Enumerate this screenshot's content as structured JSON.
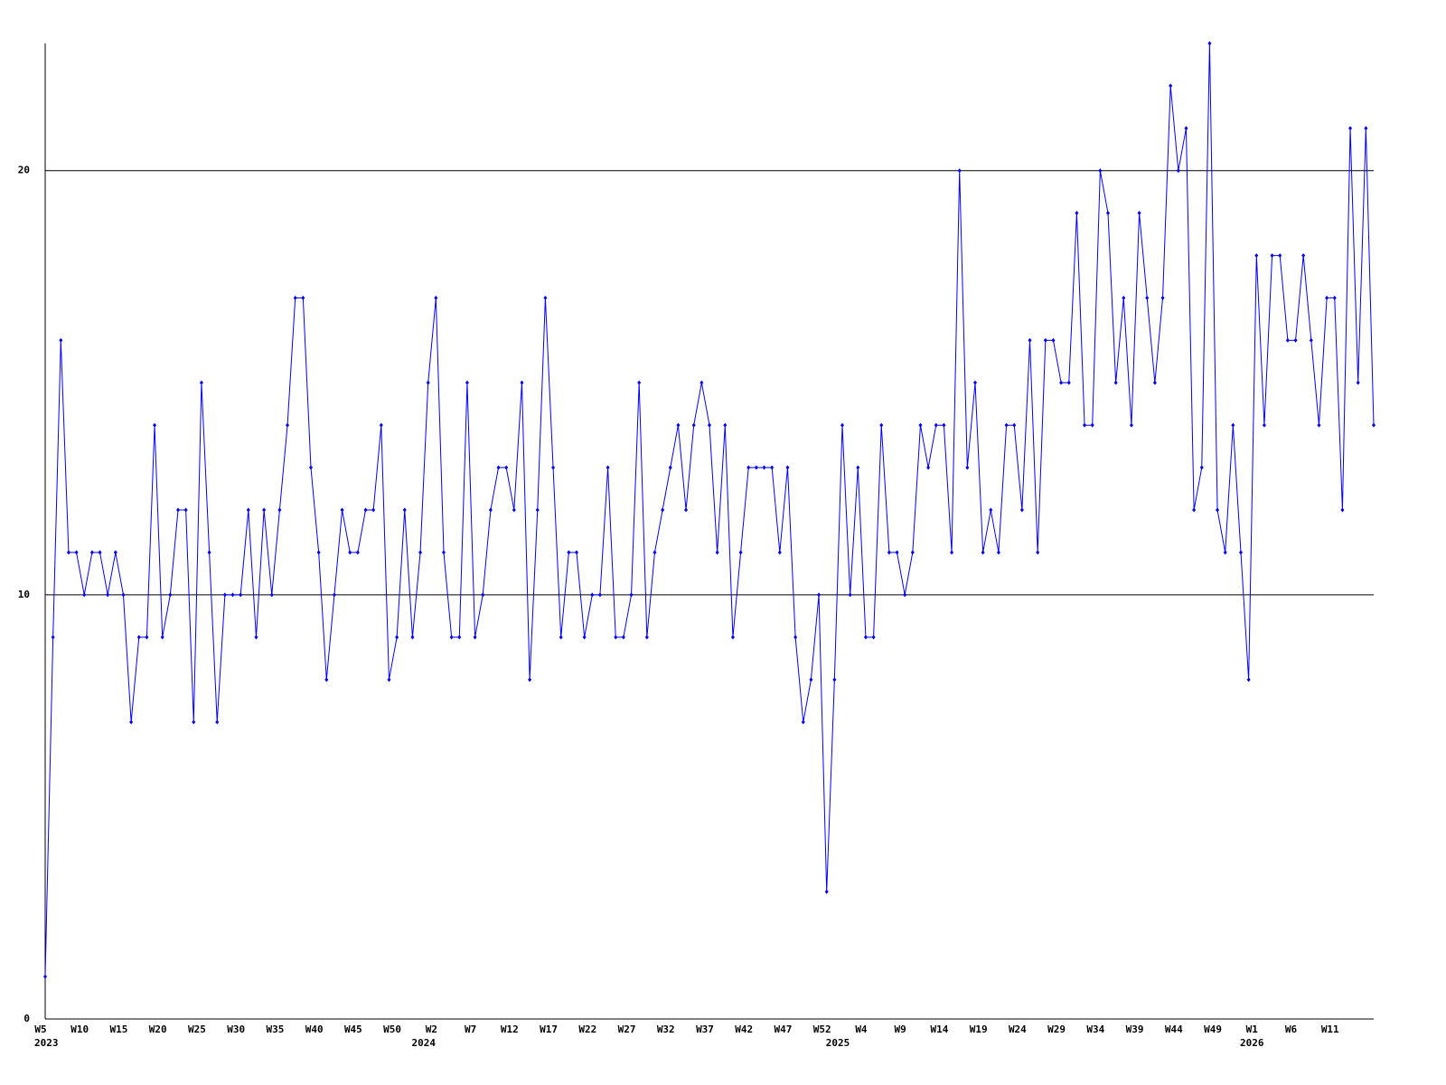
{
  "chart_data": {
    "type": "line",
    "color": "#0000ff",
    "grid": true,
    "ylim": [
      0,
      23
    ],
    "yticks": [
      0,
      10,
      20
    ],
    "categories": [
      "W5",
      null,
      null,
      null,
      null,
      "W10",
      null,
      null,
      null,
      null,
      "W15",
      null,
      null,
      null,
      null,
      "W20",
      null,
      null,
      null,
      null,
      "W25",
      null,
      null,
      null,
      null,
      "W30",
      null,
      null,
      null,
      null,
      "W35",
      null,
      null,
      null,
      null,
      "W40",
      null,
      null,
      null,
      null,
      "W45",
      null,
      null,
      null,
      null,
      "W50",
      null,
      null,
      null,
      null,
      "W2",
      null,
      null,
      null,
      null,
      "W7",
      null,
      null,
      null,
      null,
      "W12",
      null,
      null,
      null,
      null,
      "W17",
      null,
      null,
      null,
      null,
      "W22",
      null,
      null,
      null,
      null,
      "W27",
      null,
      null,
      null,
      null,
      "W32",
      null,
      null,
      null,
      null,
      "W37",
      null,
      null,
      null,
      null,
      "W42",
      null,
      null,
      null,
      null,
      "W47",
      null,
      null,
      null,
      null,
      "W52",
      null,
      null,
      null,
      null,
      "W4",
      null,
      null,
      null,
      null,
      "W9",
      null,
      null,
      null,
      null,
      "W14",
      null,
      null,
      null,
      null,
      "W19",
      null,
      null,
      null,
      null,
      "W24",
      null,
      null,
      null,
      null,
      "W29",
      null,
      null,
      null,
      null,
      "W34",
      null,
      null,
      null,
      null,
      "W39",
      null,
      null,
      null,
      null,
      "W44",
      null,
      null,
      null,
      null,
      "W49",
      null,
      null,
      null,
      null,
      "W1",
      null,
      null,
      null,
      null,
      "W6",
      null,
      null,
      null,
      null,
      "W11",
      null,
      null,
      null,
      null,
      null
    ],
    "category_years": [
      "2023",
      null,
      null,
      null,
      null,
      null,
      null,
      null,
      null,
      null,
      null,
      null,
      null,
      null,
      null,
      null,
      null,
      null,
      null,
      null,
      null,
      null,
      null,
      null,
      null,
      null,
      null,
      null,
      null,
      null,
      null,
      null,
      null,
      null,
      null,
      null,
      null,
      null,
      null,
      null,
      null,
      null,
      null,
      null,
      null,
      null,
      null,
      null,
      null,
      "2024",
      null,
      null,
      null,
      null,
      null,
      null,
      null,
      null,
      null,
      null,
      null,
      null,
      null,
      null,
      null,
      null,
      null,
      null,
      null,
      null,
      null,
      null,
      null,
      null,
      null,
      null,
      null,
      null,
      null,
      null,
      null,
      null,
      null,
      null,
      null,
      null,
      null,
      null,
      null,
      null,
      null,
      null,
      null,
      null,
      null,
      null,
      null,
      null,
      null,
      null,
      null,
      null,
      "2025",
      null,
      null,
      null,
      null,
      null,
      null,
      null,
      null,
      null,
      null,
      null,
      null,
      null,
      null,
      null,
      null,
      null,
      null,
      null,
      null,
      null,
      null,
      null,
      null,
      null,
      null,
      null,
      null,
      null,
      null,
      null,
      null,
      null,
      null,
      null,
      null,
      null,
      null,
      null,
      null,
      null,
      null,
      null,
      null,
      null,
      null,
      null,
      null,
      null,
      null,
      null,
      null,
      "2026",
      null,
      null,
      null,
      null,
      null,
      null,
      null,
      null,
      null,
      null,
      null,
      null,
      null,
      null,
      null
    ],
    "values": [
      1,
      9,
      16,
      11,
      11,
      10,
      11,
      11,
      10,
      11,
      10,
      7,
      9,
      9,
      14,
      9,
      10,
      12,
      12,
      7,
      15,
      11,
      7,
      10,
      10,
      10,
      12,
      9,
      12,
      10,
      12,
      14,
      17,
      17,
      13,
      11,
      8,
      10,
      12,
      11,
      11,
      12,
      12,
      14,
      8,
      9,
      12,
      9,
      11,
      15,
      17,
      11,
      9,
      9,
      15,
      9,
      10,
      12,
      13,
      13,
      12,
      15,
      8,
      12,
      17,
      13,
      9,
      11,
      11,
      9,
      10,
      10,
      13,
      9,
      9,
      10,
      15,
      9,
      11,
      12,
      13,
      14,
      12,
      14,
      15,
      14,
      11,
      14,
      9,
      11,
      13,
      13,
      13,
      13,
      11,
      13,
      9,
      7,
      8,
      10,
      3,
      8,
      14,
      10,
      13,
      9,
      9,
      14,
      11,
      11,
      10,
      11,
      14,
      13,
      14,
      14,
      11,
      20,
      13,
      15,
      11,
      12,
      11,
      14,
      14,
      12,
      16,
      11,
      16,
      16,
      15,
      15,
      19,
      14,
      14,
      20,
      19,
      15,
      17,
      14,
      19,
      17,
      15,
      17,
      22,
      20,
      21,
      12,
      13,
      23,
      12,
      11,
      14,
      11,
      8,
      18,
      14,
      18,
      18,
      16,
      16,
      18,
      16,
      14,
      17,
      17,
      12,
      21,
      15,
      21,
      14
    ]
  }
}
